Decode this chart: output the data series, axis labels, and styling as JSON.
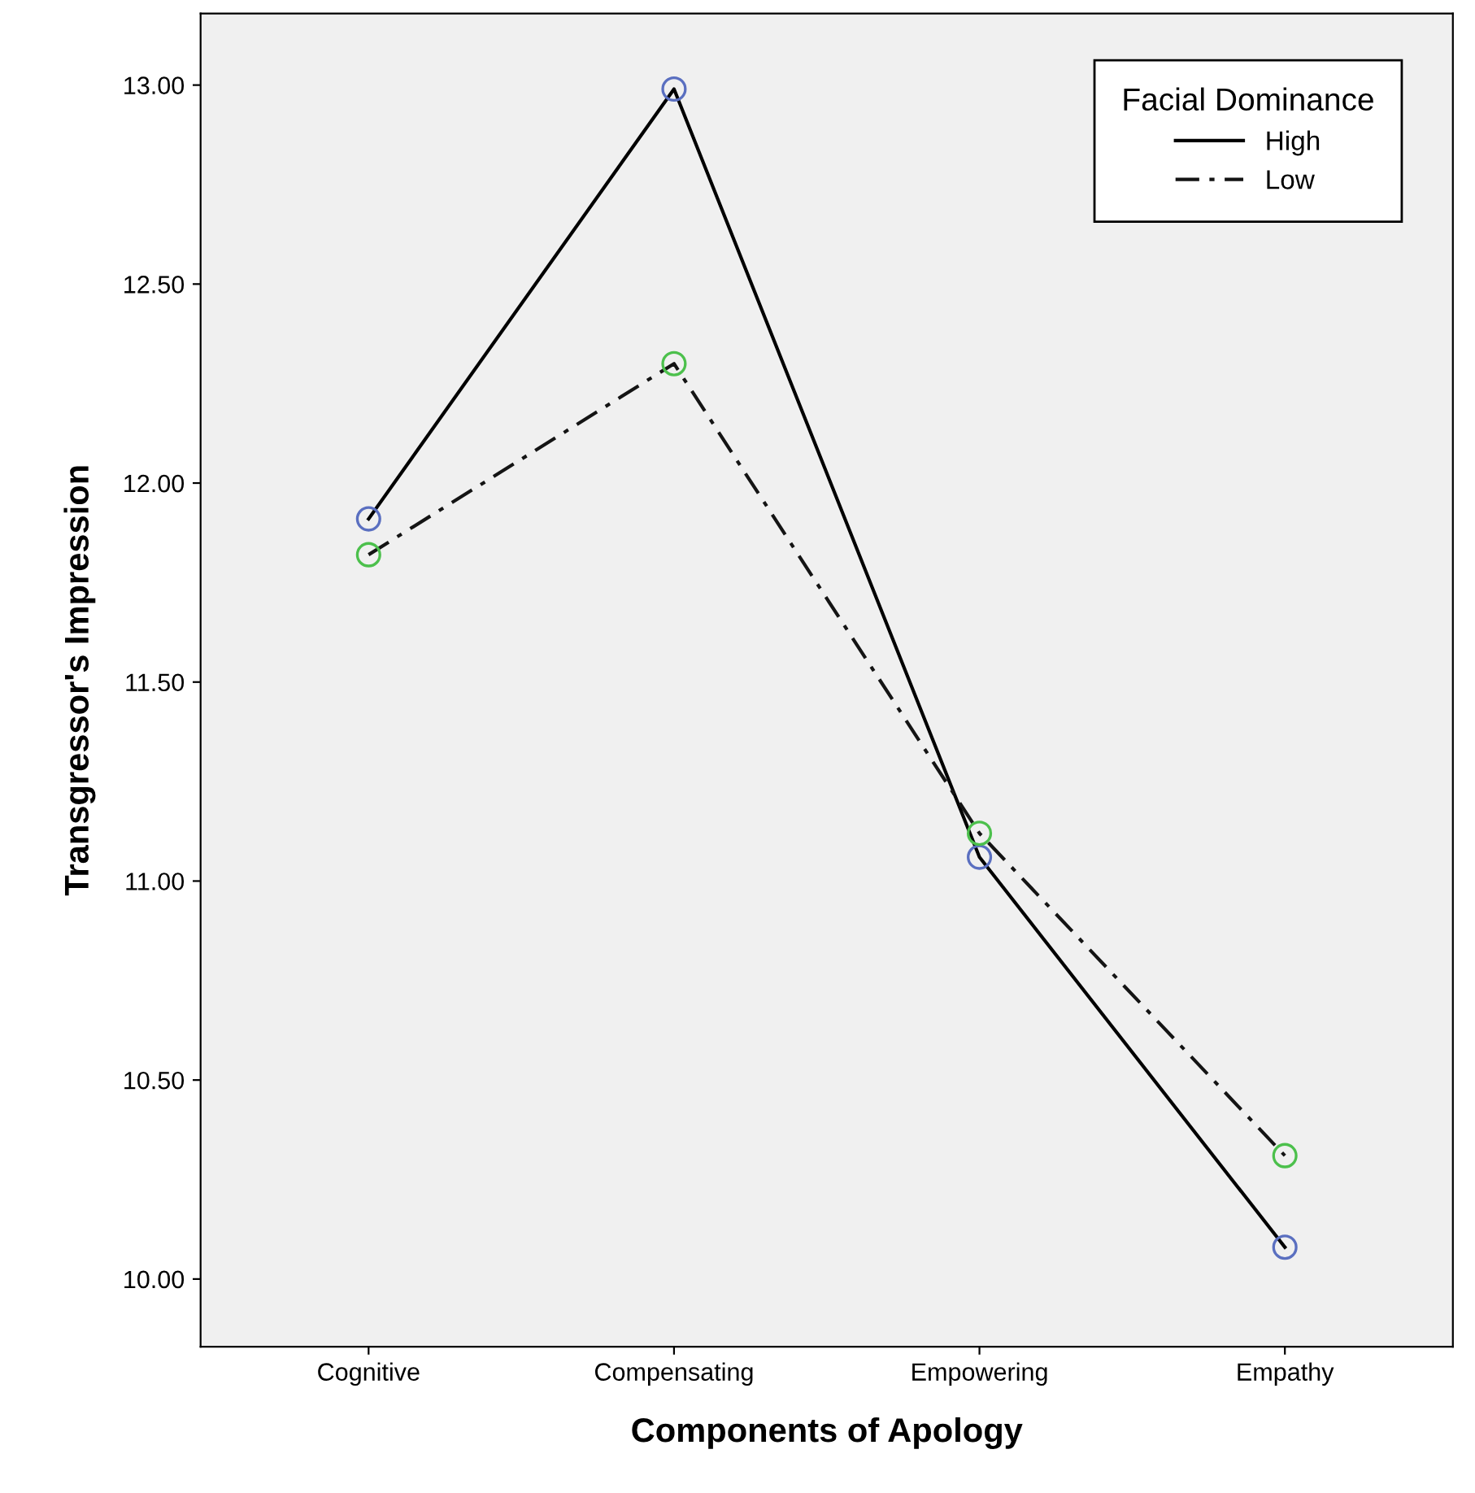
{
  "chart_data": {
    "type": "line",
    "xlabel": "Components of Apology",
    "ylabel": "Transgressor's Impression",
    "legend_title": "Facial Dominance",
    "legend": "top right",
    "marker": "circle",
    "grid": false,
    "categories": [
      "Cognitive",
      "Compensating",
      "Empowering",
      "Empathy"
    ],
    "ylim": [
      9.83,
      13.18
    ],
    "yticks": [
      {
        "value": 10,
        "label": "10.00"
      },
      {
        "value": 10.5,
        "label": "10.50"
      },
      {
        "value": 11,
        "label": "11.00"
      },
      {
        "value": 11.5,
        "label": "11.50"
      },
      {
        "value": 12,
        "label": "12.00"
      },
      {
        "value": 12.5,
        "label": "12.50"
      },
      {
        "value": 13,
        "label": "13.00"
      }
    ],
    "series": [
      {
        "name": "High",
        "color": "#000000",
        "line_style": "solid",
        "colors": [
          "#5a6fc0",
          "#5a6fc0",
          "#5a6fc0",
          "#5a6fc0"
        ],
        "values": [
          11.91,
          12.99,
          11.06,
          10.08
        ]
      },
      {
        "name": "Low",
        "color": "#141414",
        "line_style": "dashdot",
        "colors": [
          "#4cc04c",
          "#4cc04c",
          "#4cc04c",
          "#4cc04c"
        ],
        "values": [
          11.82,
          12.3,
          11.12,
          10.31
        ]
      }
    ]
  }
}
